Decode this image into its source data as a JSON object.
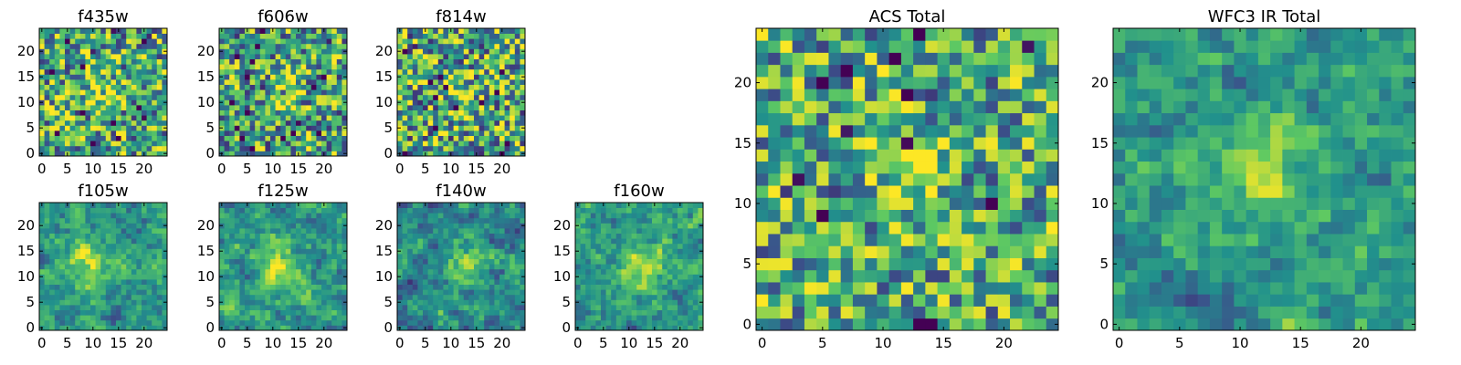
{
  "colors": {
    "colormap": [
      "#440154",
      "#3b528b",
      "#21918c",
      "#5ec962",
      "#fde725"
    ],
    "background": "#ffffff"
  },
  "chart_data": [
    {
      "type": "heatmap",
      "title": "f435w",
      "grid_size": 25,
      "colormap": "viridis",
      "xticks": [
        0,
        5,
        10,
        15,
        20
      ],
      "yticks": [
        0,
        5,
        10,
        15,
        20
      ],
      "xlim": [
        0,
        25
      ],
      "ylim": [
        0,
        25
      ],
      "grid": false,
      "peak": {
        "x": 12,
        "y": 12,
        "amp": 0.22,
        "sigma": 2.5
      },
      "seed": 11,
      "base": 0.6,
      "noise": 0.55,
      "smooth": 0
    },
    {
      "type": "heatmap",
      "title": "f606w",
      "grid_size": 25,
      "colormap": "viridis",
      "xticks": [
        0,
        5,
        10,
        15,
        20
      ],
      "yticks": [
        0,
        5,
        10,
        15,
        20
      ],
      "xlim": [
        0,
        25
      ],
      "ylim": [
        0,
        25
      ],
      "grid": false,
      "peak": {
        "x": 12,
        "y": 12,
        "amp": 0.25,
        "sigma": 2.5
      },
      "seed": 23,
      "base": 0.58,
      "noise": 0.55,
      "smooth": 0
    },
    {
      "type": "heatmap",
      "title": "f814w",
      "grid_size": 25,
      "colormap": "viridis",
      "xticks": [
        0,
        5,
        10,
        15,
        20
      ],
      "yticks": [
        0,
        5,
        10,
        15,
        20
      ],
      "xlim": [
        0,
        25
      ],
      "ylim": [
        0,
        25
      ],
      "grid": false,
      "peak": {
        "x": 12,
        "y": 12,
        "amp": 0.2,
        "sigma": 2.5
      },
      "seed": 37,
      "base": 0.6,
      "noise": 0.6,
      "smooth": 0
    },
    {
      "type": "heatmap",
      "title": "f105w",
      "grid_size": 25,
      "colormap": "viridis",
      "xticks": [
        0,
        5,
        10,
        15,
        20
      ],
      "yticks": [
        0,
        5,
        10,
        15,
        20
      ],
      "xlim": [
        0,
        25
      ],
      "ylim": [
        0,
        25
      ],
      "grid": false,
      "peak": {
        "x": 9,
        "y": 13,
        "amp": 0.3,
        "sigma": 3
      },
      "seed": 41,
      "base": 0.55,
      "noise": 0.45,
      "smooth": 1
    },
    {
      "type": "heatmap",
      "title": "f125w",
      "grid_size": 25,
      "colormap": "viridis",
      "xticks": [
        0,
        5,
        10,
        15,
        20
      ],
      "yticks": [
        0,
        5,
        10,
        15,
        20
      ],
      "xlim": [
        0,
        25
      ],
      "ylim": [
        0,
        25
      ],
      "grid": false,
      "peak": {
        "x": 12,
        "y": 11,
        "amp": 0.35,
        "sigma": 3
      },
      "seed": 53,
      "base": 0.55,
      "noise": 0.45,
      "smooth": 1
    },
    {
      "type": "heatmap",
      "title": "f140w",
      "grid_size": 25,
      "colormap": "viridis",
      "xticks": [
        0,
        5,
        10,
        15,
        20
      ],
      "yticks": [
        0,
        5,
        10,
        15,
        20
      ],
      "xlim": [
        0,
        25
      ],
      "ylim": [
        0,
        25
      ],
      "grid": false,
      "peak": {
        "x": 13,
        "y": 12,
        "amp": 0.35,
        "sigma": 3
      },
      "seed": 67,
      "base": 0.5,
      "noise": 0.45,
      "smooth": 1
    },
    {
      "type": "heatmap",
      "title": "f160w",
      "grid_size": 25,
      "colormap": "viridis",
      "xticks": [
        0,
        5,
        10,
        15,
        20
      ],
      "yticks": [
        0,
        5,
        10,
        15,
        20
      ],
      "xlim": [
        0,
        25
      ],
      "ylim": [
        0,
        25
      ],
      "grid": false,
      "peak": {
        "x": 12,
        "y": 12,
        "amp": 0.35,
        "sigma": 3
      },
      "seed": 79,
      "base": 0.55,
      "noise": 0.45,
      "smooth": 1
    },
    {
      "type": "heatmap",
      "title": "ACS Total",
      "grid_size": 25,
      "colormap": "viridis",
      "xticks": [
        0,
        5,
        10,
        15,
        20
      ],
      "yticks": [
        0,
        5,
        10,
        15,
        20
      ],
      "xlim": [
        0,
        25
      ],
      "ylim": [
        0,
        25
      ],
      "grid": false,
      "peak": {
        "x": 12,
        "y": 12,
        "amp": 0.35,
        "sigma": 1.8
      },
      "seed": 97,
      "base": 0.6,
      "noise": 0.5,
      "smooth": 0
    },
    {
      "type": "heatmap",
      "title": "WFC3 IR Total",
      "grid_size": 25,
      "colormap": "viridis",
      "xticks": [
        0,
        5,
        10,
        15,
        20
      ],
      "yticks": [
        0,
        5,
        10,
        15,
        20
      ],
      "xlim": [
        0,
        25
      ],
      "ylim": [
        0,
        25
      ],
      "grid": false,
      "peak": {
        "x": 12,
        "y": 12,
        "amp": 0.4,
        "sigma": 2.2
      },
      "seed": 113,
      "base": 0.55,
      "noise": 0.4,
      "smooth": 1
    }
  ]
}
